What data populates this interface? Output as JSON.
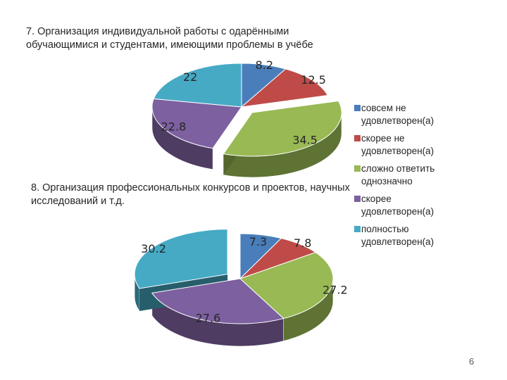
{
  "chart_data": [
    {
      "type": "pie",
      "title": "7. Организация индивидуальной работы с одарёнными обучающимися и студентами, имеющими проблемы в учёбе",
      "categories": [
        "совсем не удовлетворен(а)",
        "скорее не удовлетворен(а)",
        "сложно ответить однозначно",
        "скорее удовлетворен(а)",
        "полностью удовлетворен(а)"
      ],
      "values": [
        8.2,
        12.5,
        34.5,
        22.8,
        22
      ],
      "labels": [
        "8.2",
        "12.5",
        "34.5",
        "22.8",
        "22"
      ],
      "exploded": [
        false,
        false,
        true,
        false,
        false
      ],
      "three_d": true
    },
    {
      "type": "pie",
      "title": "8. Организация профессиональных конкурсов и проектов, научных исследований и т.д.",
      "categories": [
        "совсем не удовлетворен(а)",
        "скорее не удовлетворен(а)",
        "сложно ответить однозначно",
        "скорее удовлетворен(а)",
        "полностью удовлетворен(а)"
      ],
      "values": [
        7.3,
        7.8,
        27.2,
        27.6,
        30.2
      ],
      "labels": [
        "7.3",
        "7.8",
        "27.2",
        "27.6",
        "30.2"
      ],
      "exploded": [
        false,
        false,
        false,
        false,
        true
      ],
      "three_d": true
    }
  ],
  "legend": {
    "placement": "right",
    "items": [
      {
        "label": "совсем не удовлетворен(а)",
        "color": "#4a7ebb"
      },
      {
        "label": "скорее не удовлетворен(а)",
        "color": "#be4b48"
      },
      {
        "label": "сложно ответить однозначно",
        "color": "#98b954"
      },
      {
        "label": "скорее удовлетворен(а)",
        "color": "#7d60a0"
      },
      {
        "label": "полностью удовлетворен(а)",
        "color": "#46aac5"
      }
    ]
  },
  "colors": [
    "#4a7ebb",
    "#be4b48",
    "#98b954",
    "#7d60a0",
    "#46aac5"
  ],
  "page_number": "6"
}
